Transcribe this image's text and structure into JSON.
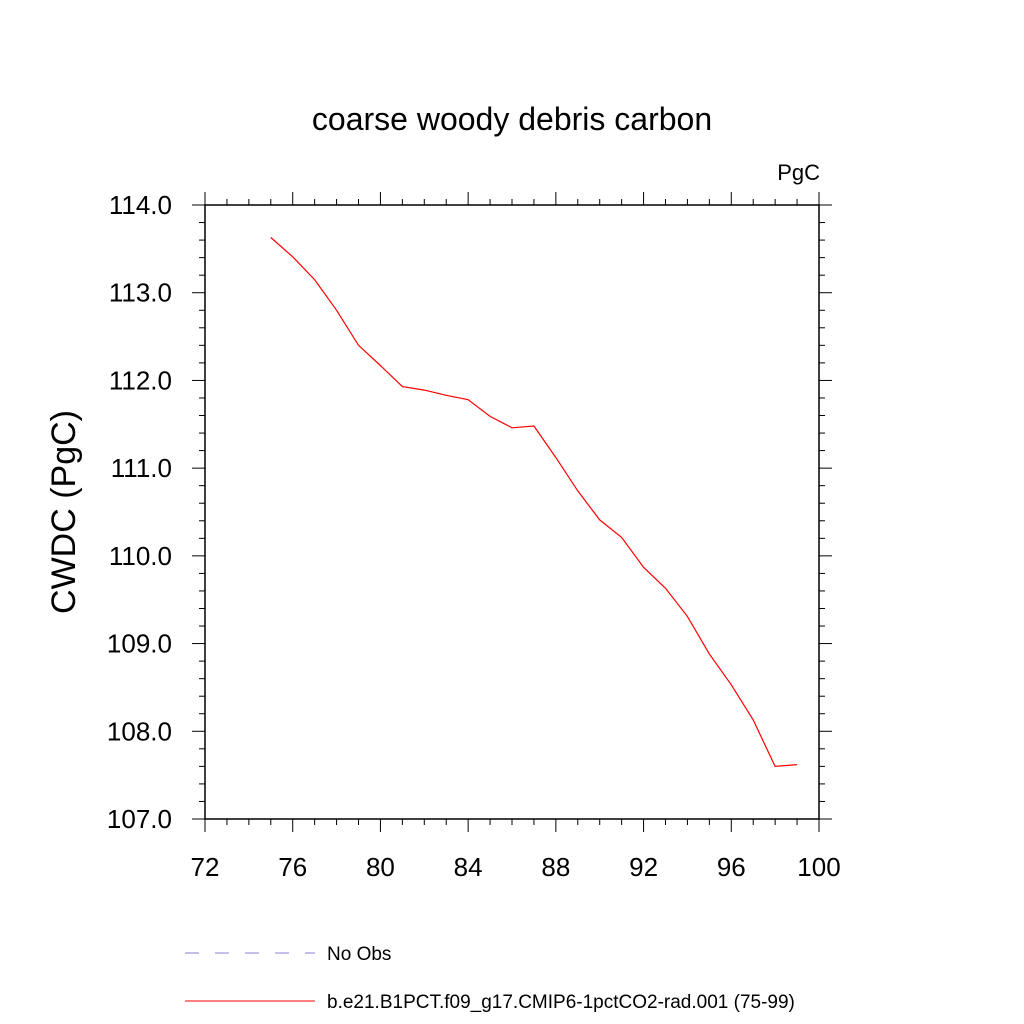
{
  "chart_data": {
    "type": "line",
    "title": "coarse woody debris carbon",
    "units_label": "PgC",
    "ylabel": "CWDC  (PgC)",
    "xlabel": "",
    "xlim": [
      72,
      100
    ],
    "ylim": [
      107.0,
      114.0
    ],
    "x_ticks": [
      "72",
      "76",
      "80",
      "84",
      "88",
      "92",
      "96",
      "100"
    ],
    "y_ticks": [
      "107.0",
      "108.0",
      "109.0",
      "110.0",
      "111.0",
      "112.0",
      "113.0",
      "114.0"
    ],
    "grid": false,
    "legend_position": "bottom",
    "series": [
      {
        "name": "b.e21.B1PCT.f09_g17.CMIP6-1pctCO2-rad.001 (75-99)",
        "color": "#ff0000",
        "style": "solid",
        "x": [
          75,
          76,
          77,
          78,
          79,
          80,
          81,
          82,
          83,
          84,
          85,
          86,
          87,
          88,
          89,
          90,
          91,
          92,
          93,
          94,
          95,
          96,
          97,
          98,
          99
        ],
        "y": [
          113.63,
          113.41,
          113.15,
          112.8,
          112.4,
          112.17,
          111.93,
          111.89,
          111.83,
          111.78,
          111.59,
          111.46,
          111.48,
          111.12,
          110.74,
          110.41,
          110.21,
          109.87,
          109.63,
          109.31,
          108.88,
          108.53,
          108.13,
          107.6,
          107.62
        ]
      }
    ],
    "legend": [
      {
        "label": "No Obs",
        "color": "#8a7fd0",
        "style": "dashed"
      },
      {
        "label": "b.e21.B1PCT.f09_g17.CMIP6-1pctCO2-rad.001 (75-99)",
        "color": "#ff0000",
        "style": "solid"
      }
    ]
  }
}
